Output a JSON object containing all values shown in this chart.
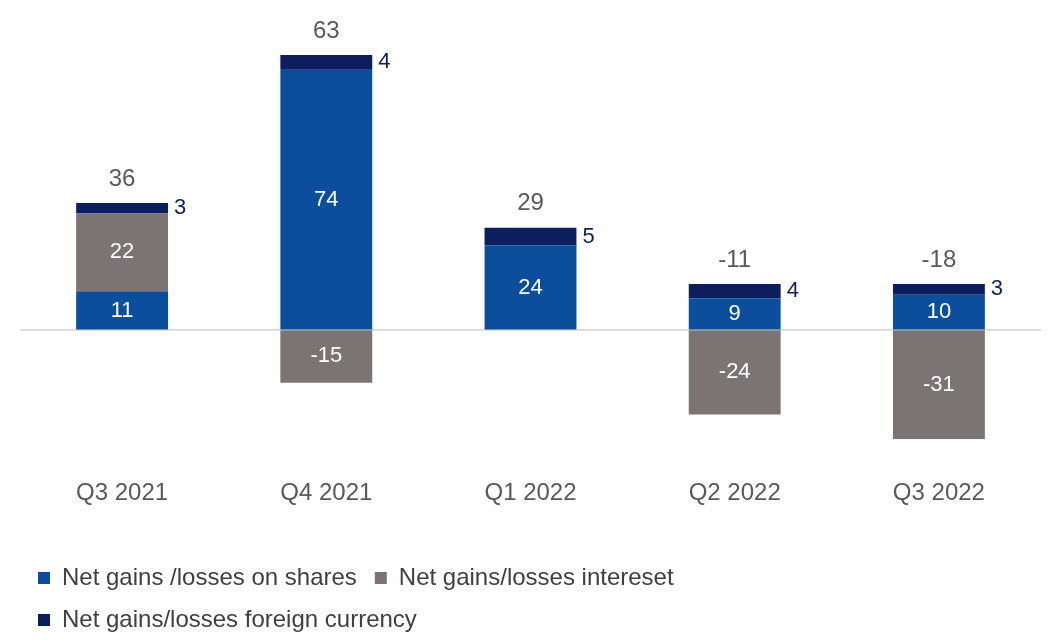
{
  "chart_data": {
    "type": "bar",
    "stacked": true,
    "categories": [
      "Q3 2021",
      "Q4 2021",
      "Q1 2022",
      "Q2 2022",
      "Q3 2022"
    ],
    "series": [
      {
        "name": "Net gains /losses on shares",
        "color": "#0b4f9c",
        "values": [
          11,
          74,
          24,
          9,
          10
        ]
      },
      {
        "name": "Net gains/losses intereset",
        "color": "#7a7474",
        "values": [
          22,
          -15,
          null,
          -24,
          -31
        ]
      },
      {
        "name": "Net gains/losses foreign currency",
        "color": "#0c1f5c",
        "values": [
          3,
          4,
          5,
          4,
          3
        ]
      }
    ],
    "data_labels": true,
    "totals": [
      "36",
      "63",
      "29",
      "-11",
      "-18"
    ],
    "legend": "bottom left",
    "grid": false
  }
}
